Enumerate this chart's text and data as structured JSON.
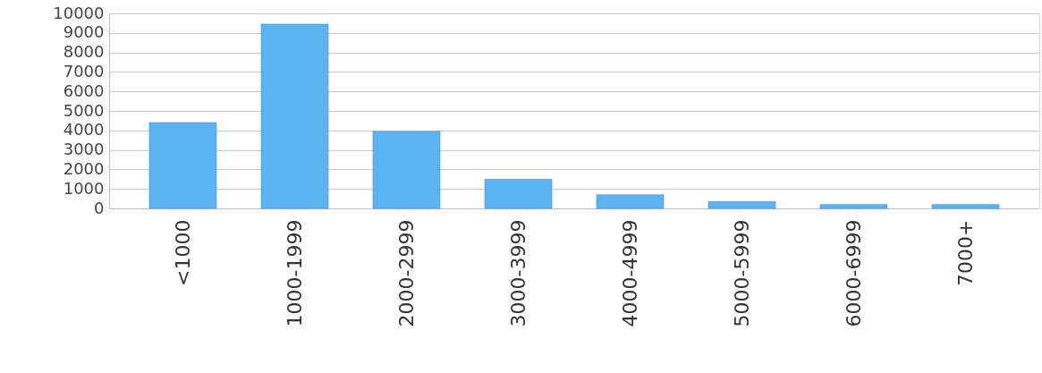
{
  "chart_data": {
    "type": "bar",
    "categories": [
      "<1000",
      "1000-1999",
      "2000-2999",
      "3000-3999",
      "4000-4999",
      "5000-5999",
      "6000-6999",
      "7000+"
    ],
    "values": [
      4400,
      9450,
      3950,
      1500,
      700,
      350,
      200,
      200
    ],
    "color": "#5cb3f2",
    "ylim": [
      0,
      10000
    ],
    "yticks": [
      0,
      1000,
      2000,
      3000,
      4000,
      5000,
      6000,
      7000,
      8000,
      9000,
      10000
    ],
    "grid": "y"
  }
}
